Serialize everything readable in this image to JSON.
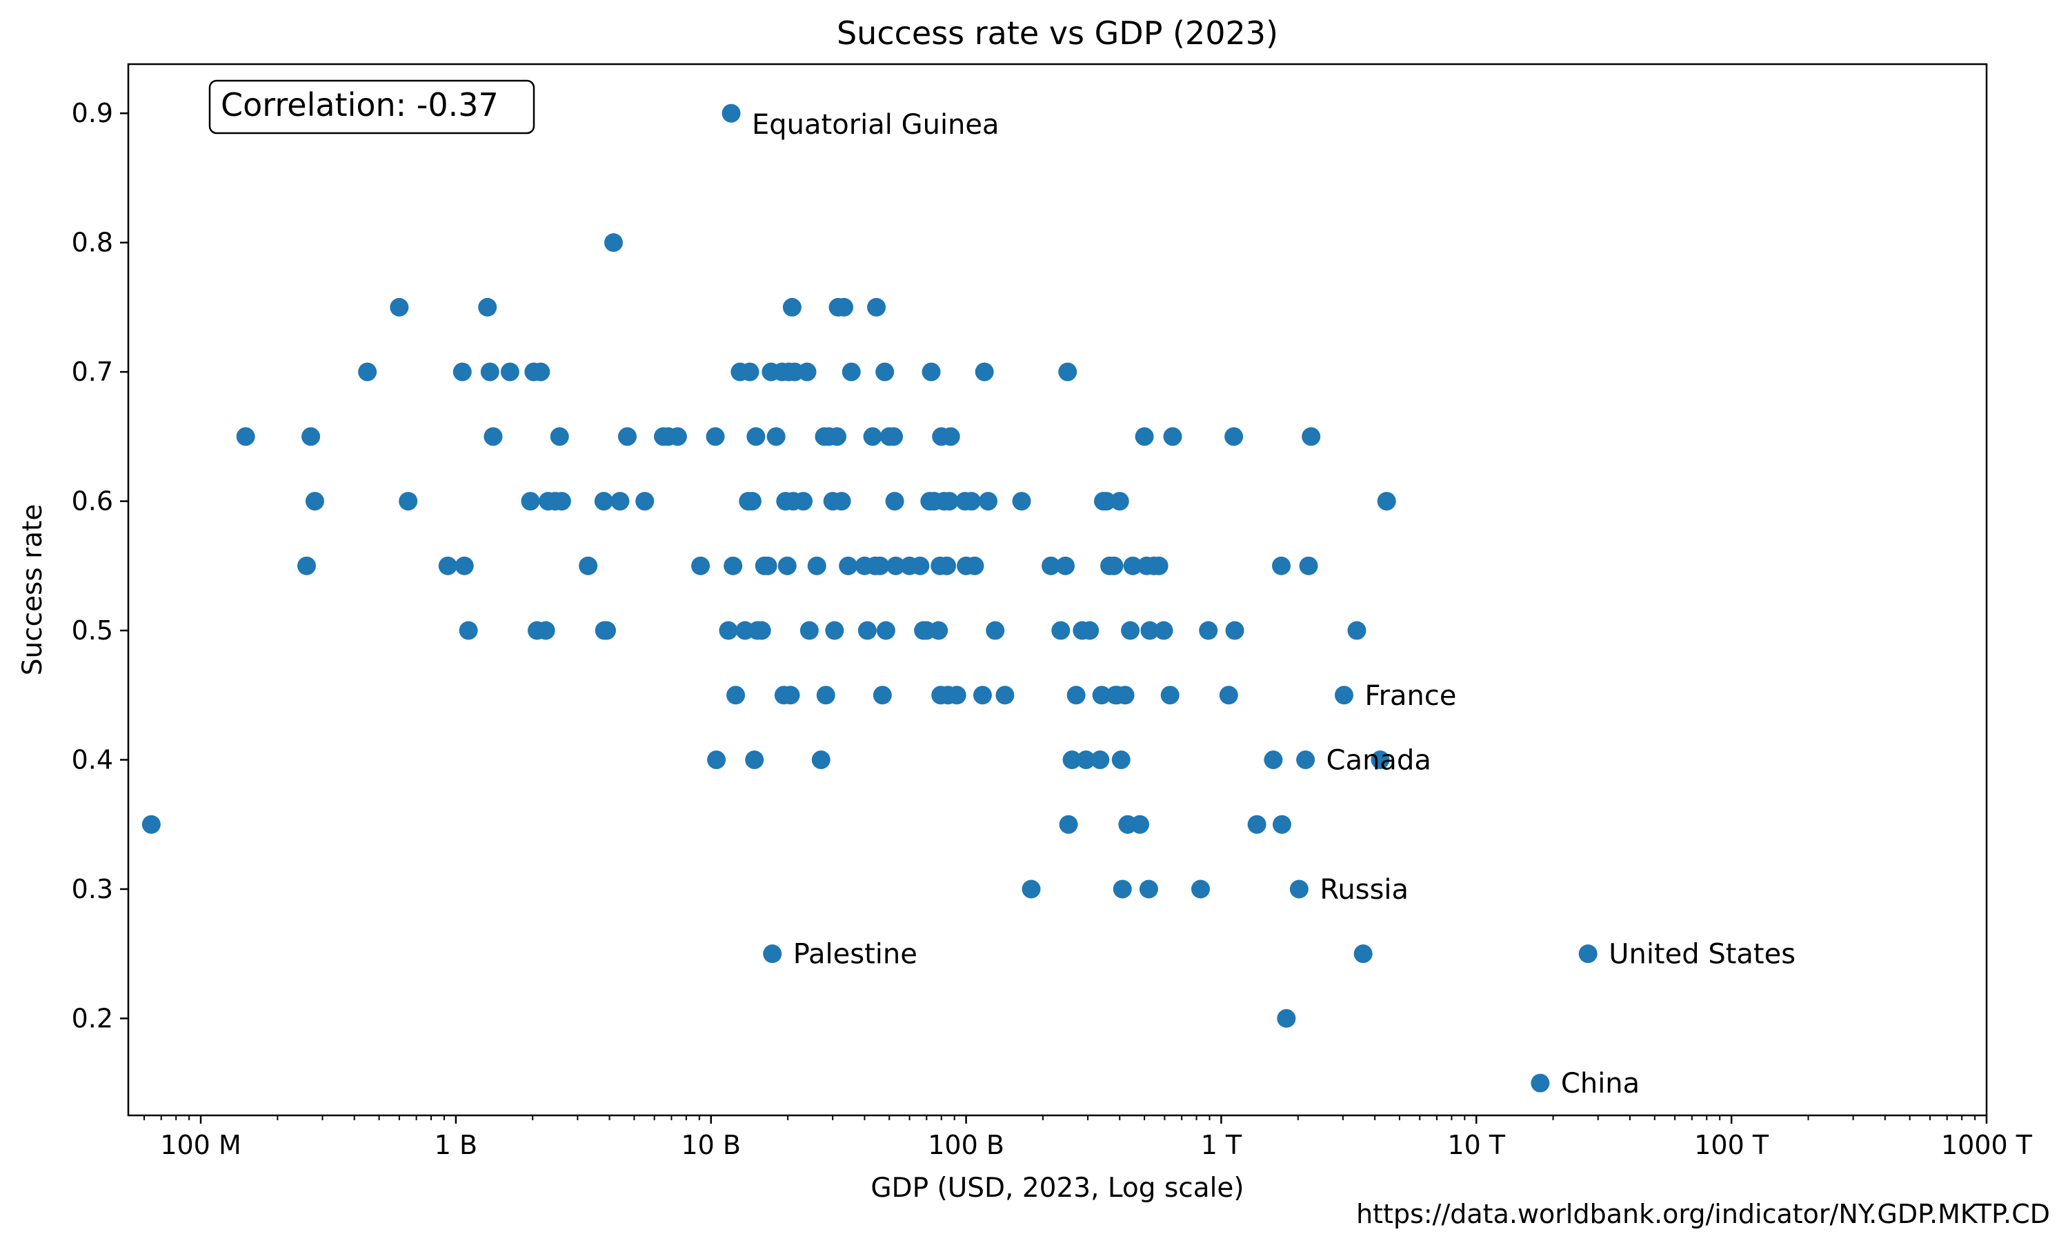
{
  "chart_data": {
    "type": "scatter",
    "title": "Success rate vs GDP (2023)",
    "xlabel": "GDP (USD, 2023, Log scale)",
    "ylabel": "Success rate",
    "xscale": "log",
    "xlim": [
      52000000,
      1000000000000000
    ],
    "ylim": [
      0.125,
      0.938
    ],
    "xticks": [
      {
        "value": 100000000,
        "label": "100 M"
      },
      {
        "value": 1000000000,
        "label": "1 B"
      },
      {
        "value": 10000000000,
        "label": "10 B"
      },
      {
        "value": 100000000000,
        "label": "100 B"
      },
      {
        "value": 1000000000000,
        "label": "1 T"
      },
      {
        "value": 10000000000000,
        "label": "10 T"
      },
      {
        "value": 100000000000000,
        "label": "100 T"
      },
      {
        "value": 1000000000000000,
        "label": "1000 T"
      }
    ],
    "yticks": [
      {
        "value": 0.2,
        "label": "0.2"
      },
      {
        "value": 0.3,
        "label": "0.3"
      },
      {
        "value": 0.4,
        "label": "0.4"
      },
      {
        "value": 0.5,
        "label": "0.5"
      },
      {
        "value": 0.6,
        "label": "0.6"
      },
      {
        "value": 0.7,
        "label": "0.7"
      },
      {
        "value": 0.8,
        "label": "0.8"
      },
      {
        "value": 0.9,
        "label": "0.9"
      }
    ],
    "grid": false,
    "marker_color": "#1f77b4",
    "correlation_label": "Correlation: -0.37",
    "source": "https://data.worldbank.org/indicator/NY.GDP.MKTP.CD",
    "labeled_points": [
      {
        "label": "Equatorial Guinea",
        "x": 12000000000,
        "y": 0.9
      },
      {
        "label": "France",
        "x": 3030000000000,
        "y": 0.45
      },
      {
        "label": "Canada",
        "x": 2140000000000,
        "y": 0.4
      },
      {
        "label": "Russia",
        "x": 2020000000000,
        "y": 0.3
      },
      {
        "label": "Palestine",
        "x": 17400000000,
        "y": 0.25
      },
      {
        "label": "United States",
        "x": 27400000000000,
        "y": 0.25
      },
      {
        "label": "China",
        "x": 17800000000000,
        "y": 0.15
      }
    ],
    "points": [
      [
        64000000.0,
        0.35
      ],
      [
        150000000.0,
        0.65
      ],
      [
        270000000.0,
        0.65
      ],
      [
        280000000.0,
        0.6
      ],
      [
        260000000.0,
        0.55
      ],
      [
        450000000.0,
        0.7
      ],
      [
        600000000.0,
        0.75
      ],
      [
        650000000.0,
        0.6
      ],
      [
        930000000.0,
        0.55
      ],
      [
        1060000000.0,
        0.7
      ],
      [
        1080000000.0,
        0.55
      ],
      [
        1120000000.0,
        0.5
      ],
      [
        1330000000.0,
        0.75
      ],
      [
        1360000000.0,
        0.7
      ],
      [
        1400000000.0,
        0.65
      ],
      [
        1630000000.0,
        0.7
      ],
      [
        1960000000.0,
        0.6
      ],
      [
        2020000000.0,
        0.7
      ],
      [
        2080000000.0,
        0.5
      ],
      [
        2150000000.0,
        0.7
      ],
      [
        2250000000.0,
        0.5
      ],
      [
        2300000000.0,
        0.6
      ],
      [
        2450000000.0,
        0.6
      ],
      [
        2550000000.0,
        0.65
      ],
      [
        2600000000.0,
        0.6
      ],
      [
        3300000000.0,
        0.55
      ],
      [
        3800000000.0,
        0.6
      ],
      [
        3820000000.0,
        0.5
      ],
      [
        3900000000.0,
        0.5
      ],
      [
        4150000000.0,
        0.8
      ],
      [
        4400000000.0,
        0.6
      ],
      [
        4700000000.0,
        0.65
      ],
      [
        5500000000.0,
        0.6
      ],
      [
        6500000000.0,
        0.65
      ],
      [
        6800000000.0,
        0.65
      ],
      [
        7400000000.0,
        0.65
      ],
      [
        9100000000.0,
        0.55
      ],
      [
        10400000000.0,
        0.65
      ],
      [
        10500000000.0,
        0.4
      ],
      [
        11700000000.0,
        0.5
      ],
      [
        12200000000.0,
        0.55
      ],
      [
        12500000000.0,
        0.45
      ],
      [
        13000000000.0,
        0.7
      ],
      [
        13600000000.0,
        0.5
      ],
      [
        14000000000.0,
        0.6
      ],
      [
        14200000000.0,
        0.7
      ],
      [
        14500000000.0,
        0.6
      ],
      [
        14800000000.0,
        0.4
      ],
      [
        15000000000.0,
        0.65
      ],
      [
        15200000000.0,
        0.5
      ],
      [
        15800000000.0,
        0.5
      ],
      [
        16200000000.0,
        0.55
      ],
      [
        16700000000.0,
        0.55
      ],
      [
        17200000000.0,
        0.7
      ],
      [
        18000000000.0,
        0.65
      ],
      [
        19000000000.0,
        0.7
      ],
      [
        19300000000.0,
        0.45
      ],
      [
        19600000000.0,
        0.6
      ],
      [
        19900000000.0,
        0.55
      ],
      [
        20200000000.0,
        0.7
      ],
      [
        20500000000.0,
        0.45
      ],
      [
        20800000000.0,
        0.75
      ],
      [
        21000000000.0,
        0.6
      ],
      [
        21300000000.0,
        0.7
      ],
      [
        23000000000.0,
        0.6
      ],
      [
        23800000000.0,
        0.7
      ],
      [
        24300000000.0,
        0.5
      ],
      [
        26000000000.0,
        0.55
      ],
      [
        27000000000.0,
        0.4
      ],
      [
        27800000000.0,
        0.65
      ],
      [
        28200000000.0,
        0.45
      ],
      [
        29000000000.0,
        0.65
      ],
      [
        30000000000.0,
        0.6
      ],
      [
        30500000000.0,
        0.5
      ],
      [
        31200000000.0,
        0.65
      ],
      [
        31500000000.0,
        0.75
      ],
      [
        32500000000.0,
        0.6
      ],
      [
        33200000000.0,
        0.75
      ],
      [
        34500000000.0,
        0.55
      ],
      [
        35500000000.0,
        0.7
      ],
      [
        40000000000.0,
        0.55
      ],
      [
        41000000000.0,
        0.5
      ],
      [
        43000000000.0,
        0.65
      ],
      [
        44000000000.0,
        0.55
      ],
      [
        44500000000.0,
        0.75
      ],
      [
        46000000000.0,
        0.55
      ],
      [
        47000000000.0,
        0.45
      ],
      [
        48000000000.0,
        0.7
      ],
      [
        48500000000.0,
        0.5
      ],
      [
        50000000000.0,
        0.65
      ],
      [
        52000000000.0,
        0.65
      ],
      [
        53000000000.0,
        0.55
      ],
      [
        52500000000.0,
        0.6
      ],
      [
        60000000000.0,
        0.55
      ],
      [
        66000000000.0,
        0.55
      ],
      [
        68000000000.0,
        0.5
      ],
      [
        70000000000.0,
        0.5
      ],
      [
        72000000000.0,
        0.6
      ],
      [
        73000000000.0,
        0.7
      ],
      [
        75000000000.0,
        0.6
      ],
      [
        78000000000.0,
        0.5
      ],
      [
        79000000000.0,
        0.55
      ],
      [
        79500000000.0,
        0.45
      ],
      [
        80000000000.0,
        0.65
      ],
      [
        82000000000.0,
        0.6
      ],
      [
        84000000000.0,
        0.55
      ],
      [
        85000000000.0,
        0.45
      ],
      [
        86000000000.0,
        0.6
      ],
      [
        87000000000.0,
        0.65
      ],
      [
        92000000000.0,
        0.45
      ],
      [
        99000000000.0,
        0.6
      ],
      [
        100000000000.0,
        0.55
      ],
      [
        105000000000.0,
        0.6
      ],
      [
        108000000000.0,
        0.55
      ],
      [
        116000000000.0,
        0.45
      ],
      [
        118000000000.0,
        0.7
      ],
      [
        122000000000.0,
        0.6
      ],
      [
        130000000000.0,
        0.5
      ],
      [
        142000000000.0,
        0.45
      ],
      [
        165000000000.0,
        0.6
      ],
      [
        180000000000.0,
        0.3
      ],
      [
        215000000000.0,
        0.55
      ],
      [
        235000000000.0,
        0.5
      ],
      [
        245000000000.0,
        0.55
      ],
      [
        250000000000.0,
        0.7
      ],
      [
        252000000000.0,
        0.35
      ],
      [
        260000000000.0,
        0.4
      ],
      [
        270000000000.0,
        0.45
      ],
      [
        285000000000.0,
        0.5
      ],
      [
        295000000000.0,
        0.4
      ],
      [
        305000000000.0,
        0.5
      ],
      [
        335000000000.0,
        0.4
      ],
      [
        340000000000.0,
        0.45
      ],
      [
        345000000000.0,
        0.6
      ],
      [
        355000000000.0,
        0.6
      ],
      [
        365000000000.0,
        0.55
      ],
      [
        380000000000.0,
        0.55
      ],
      [
        385000000000.0,
        0.45
      ],
      [
        390000000000.0,
        0.45
      ],
      [
        400000000000.0,
        0.6
      ],
      [
        405000000000.0,
        0.4
      ],
      [
        410000000000.0,
        0.3
      ],
      [
        420000000000.0,
        0.45
      ],
      [
        430000000000.0,
        0.35
      ],
      [
        440000000000.0,
        0.5
      ],
      [
        450000000000.0,
        0.55
      ],
      [
        480000000000.0,
        0.35
      ],
      [
        500000000000.0,
        0.65
      ],
      [
        510000000000.0,
        0.55
      ],
      [
        520000000000.0,
        0.3
      ],
      [
        525000000000.0,
        0.5
      ],
      [
        545000000000.0,
        0.55
      ],
      [
        570000000000.0,
        0.55
      ],
      [
        595000000000.0,
        0.5
      ],
      [
        630000000000.0,
        0.45
      ],
      [
        645000000000.0,
        0.65
      ],
      [
        830000000000.0,
        0.3
      ],
      [
        890000000000.0,
        0.5
      ],
      [
        1070000000000.0,
        0.45
      ],
      [
        1120000000000.0,
        0.65
      ],
      [
        1130000000000.0,
        0.5
      ],
      [
        1380000000000.0,
        0.35
      ],
      [
        1600000000000.0,
        0.4
      ],
      [
        1720000000000.0,
        0.55
      ],
      [
        1730000000000.0,
        0.35
      ],
      [
        1800000000000.0,
        0.2
      ],
      [
        2200000000000.0,
        0.55
      ],
      [
        2250000000000.0,
        0.65
      ],
      [
        3400000000000.0,
        0.5
      ],
      [
        3600000000000.0,
        0.25
      ],
      [
        4200000000000.0,
        0.4
      ],
      [
        4450000000000.0,
        0.6
      ]
    ]
  }
}
